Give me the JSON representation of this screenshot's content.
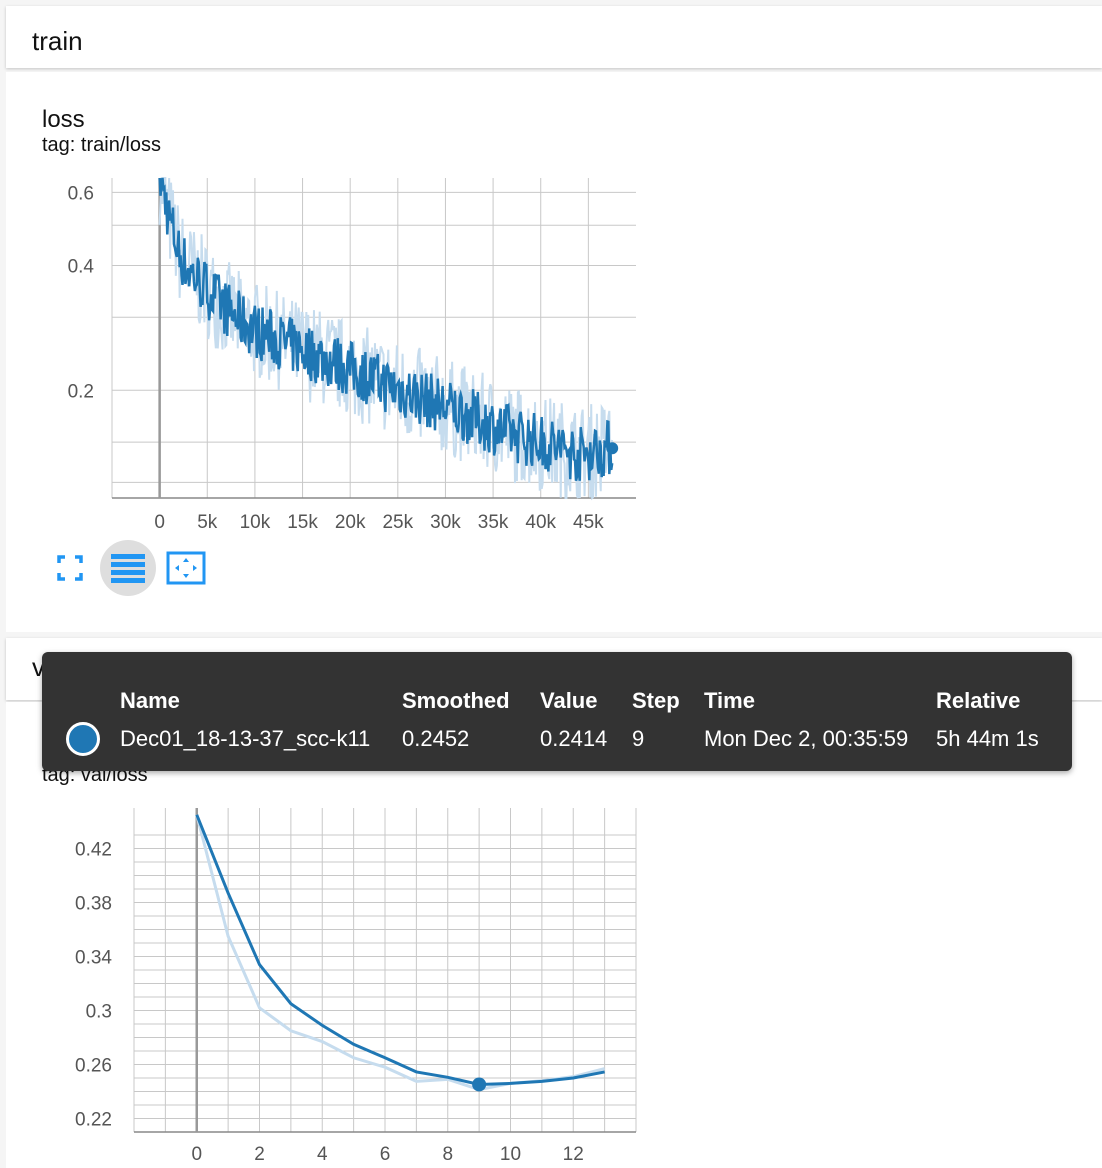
{
  "sections": {
    "train": {
      "title": "train"
    },
    "val": {
      "title": "val"
    }
  },
  "colors": {
    "line": "#1f77b4",
    "raw": "#c6dcee",
    "grid": "#c8c8c8"
  },
  "charts": {
    "train": {
      "title": "loss",
      "tag": "tag: train/loss",
      "xticks": [
        "0",
        "5k",
        "10k",
        "15k",
        "20k",
        "25k",
        "30k",
        "35k",
        "40k",
        "45k"
      ],
      "yticks": [
        "0.6",
        "0.4",
        "0.2"
      ]
    },
    "val": {
      "title": "loss",
      "tag": "tag: val/loss",
      "xticks": [
        "0",
        "2",
        "4",
        "6",
        "8",
        "10",
        "12"
      ],
      "yticks": [
        "0.42",
        "0.38",
        "0.34",
        "0.3",
        "0.26",
        "0.22"
      ]
    }
  },
  "toolbar": {
    "expand_icon": "fullscreen-icon",
    "data_selection_icon": "list-icon",
    "fit_domain_icon": "fit-to-domain-icon"
  },
  "tooltip": {
    "headers": {
      "name": "Name",
      "smoothed": "Smoothed",
      "value": "Value",
      "step": "Step",
      "time": "Time",
      "relative": "Relative"
    },
    "row": {
      "name": "Dec01_18-13-37_scc-k11",
      "smoothed": "0.2452",
      "value": "0.2414",
      "step": "9",
      "time": "Mon Dec 2, 00:35:59",
      "relative": "5h 44m 1s"
    }
  },
  "chart_data": [
    {
      "type": "line",
      "title": "loss",
      "subtitle": "tag: train/loss",
      "scale": "log",
      "xlim": [
        -5000,
        50000
      ],
      "ylim": [
        0.11,
        0.65
      ],
      "grid": true,
      "series": [
        {
          "kind": "smoothed",
          "x": [
            0,
            1000,
            2000,
            3000,
            4000,
            6000,
            8000,
            10000,
            13000,
            16000,
            20000,
            24000,
            28000,
            32000,
            36000,
            40000,
            44000,
            47000
          ],
          "y": [
            0.66,
            0.52,
            0.43,
            0.39,
            0.37,
            0.33,
            0.3,
            0.28,
            0.26,
            0.245,
            0.225,
            0.205,
            0.19,
            0.175,
            0.16,
            0.15,
            0.14,
            0.145
          ]
        }
      ],
      "highlight": {
        "x": 47500,
        "y": 0.145
      }
    },
    {
      "type": "line",
      "title": "loss",
      "subtitle": "tag: val/loss",
      "xlim": [
        -2,
        14
      ],
      "ylim": [
        0.21,
        0.45
      ],
      "grid": true,
      "series": [
        {
          "kind": "smoothed",
          "x": [
            0,
            1,
            2,
            3,
            4,
            5,
            6,
            7,
            8,
            9,
            10,
            11,
            12,
            13
          ],
          "y": [
            0.445,
            0.387,
            0.334,
            0.305,
            0.289,
            0.275,
            0.265,
            0.2545,
            0.2505,
            0.2452,
            0.246,
            0.2475,
            0.25,
            0.2545
          ]
        },
        {
          "kind": "raw",
          "x": [
            0,
            1,
            2,
            3,
            4,
            5,
            6,
            7,
            8,
            9,
            10,
            11,
            12,
            13
          ],
          "y": [
            0.445,
            0.355,
            0.302,
            0.285,
            0.277,
            0.265,
            0.258,
            0.2475,
            0.249,
            0.2414,
            0.246,
            0.248,
            0.251,
            0.257
          ]
        }
      ],
      "highlight": {
        "x": 9,
        "y": 0.2452
      }
    }
  ]
}
